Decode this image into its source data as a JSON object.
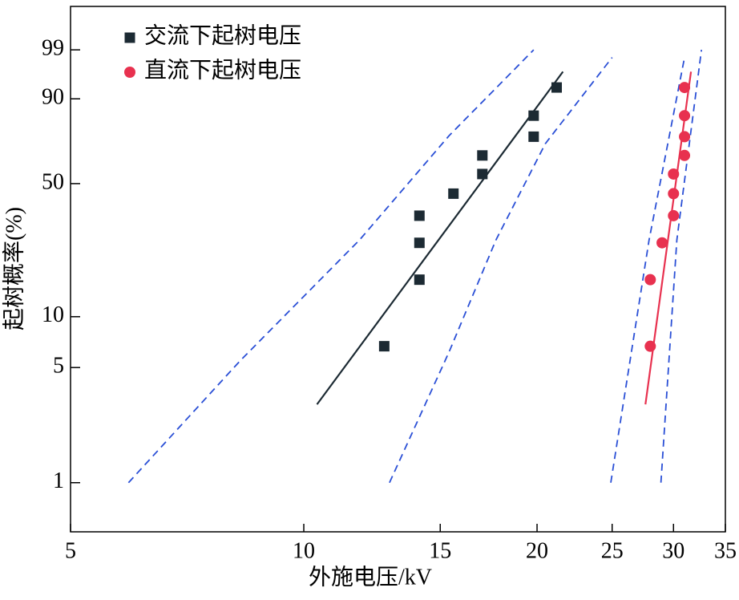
{
  "chart_data": {
    "type": "scatter",
    "x_label": "外施电压/kV",
    "y_label": "起树概率(%)",
    "x_scale": "log",
    "y_scale": "weibull",
    "xlim": [
      5,
      35
    ],
    "ylim": [
      0.5,
      99.98
    ],
    "xticks": [
      5,
      10,
      15,
      20,
      25,
      30,
      35
    ],
    "yticks": [
      1,
      5,
      10,
      50,
      90,
      99
    ],
    "legend_position": "upper left",
    "series": [
      {
        "name": "交流下起树电压",
        "color": "#1c2a33",
        "marker": "square",
        "x": [
          12.7,
          14.1,
          14.1,
          14.1,
          15.6,
          17.0,
          17.0,
          19.8,
          19.8,
          21.2
        ],
        "values": [
          6.7,
          16.3,
          25.9,
          35.6,
          45.2,
          54.8,
          64.4,
          74.0,
          83.7,
          93.3
        ]
      },
      {
        "name": "直流下起树电压",
        "color": "#e8314f",
        "marker": "circle",
        "x": [
          28.0,
          28.0,
          29.0,
          30.0,
          30.0,
          30.0,
          31.0,
          31.0,
          31.0,
          31.0
        ],
        "values": [
          6.7,
          16.3,
          25.9,
          35.6,
          45.2,
          54.8,
          64.4,
          74.0,
          83.7,
          93.3
        ]
      }
    ],
    "lines": [
      {
        "color": "#1c2a33",
        "dashed": false,
        "x": [
          10.4,
          21.6
        ],
        "values": [
          3.0,
          96.6
        ]
      },
      {
        "color": "#e8314f",
        "dashed": false,
        "x": [
          27.6,
          31.6
        ],
        "values": [
          3.0,
          96.6
        ]
      },
      {
        "color": "#2a4fd6",
        "dashed": true,
        "x": [
          5.94,
          8.28,
          11.8,
          15.4,
          19.8
        ],
        "values": [
          1,
          5.5,
          26.8,
          74.5,
          99
        ]
      },
      {
        "color": "#2a4fd6",
        "dashed": true,
        "x": [
          12.9,
          15.4,
          17.7,
          20.5,
          25.0
        ],
        "values": [
          1,
          6.2,
          26.8,
          70.5,
          98.4
        ]
      },
      {
        "color": "#2a4fd6",
        "dashed": true,
        "x": [
          24.9,
          27.9,
          31.0
        ],
        "values": [
          1,
          26.8,
          98.4
        ]
      },
      {
        "color": "#2a4fd6",
        "dashed": true,
        "x": [
          28.9,
          30.3,
          32.6
        ],
        "values": [
          1,
          26.8,
          99
        ]
      }
    ]
  }
}
